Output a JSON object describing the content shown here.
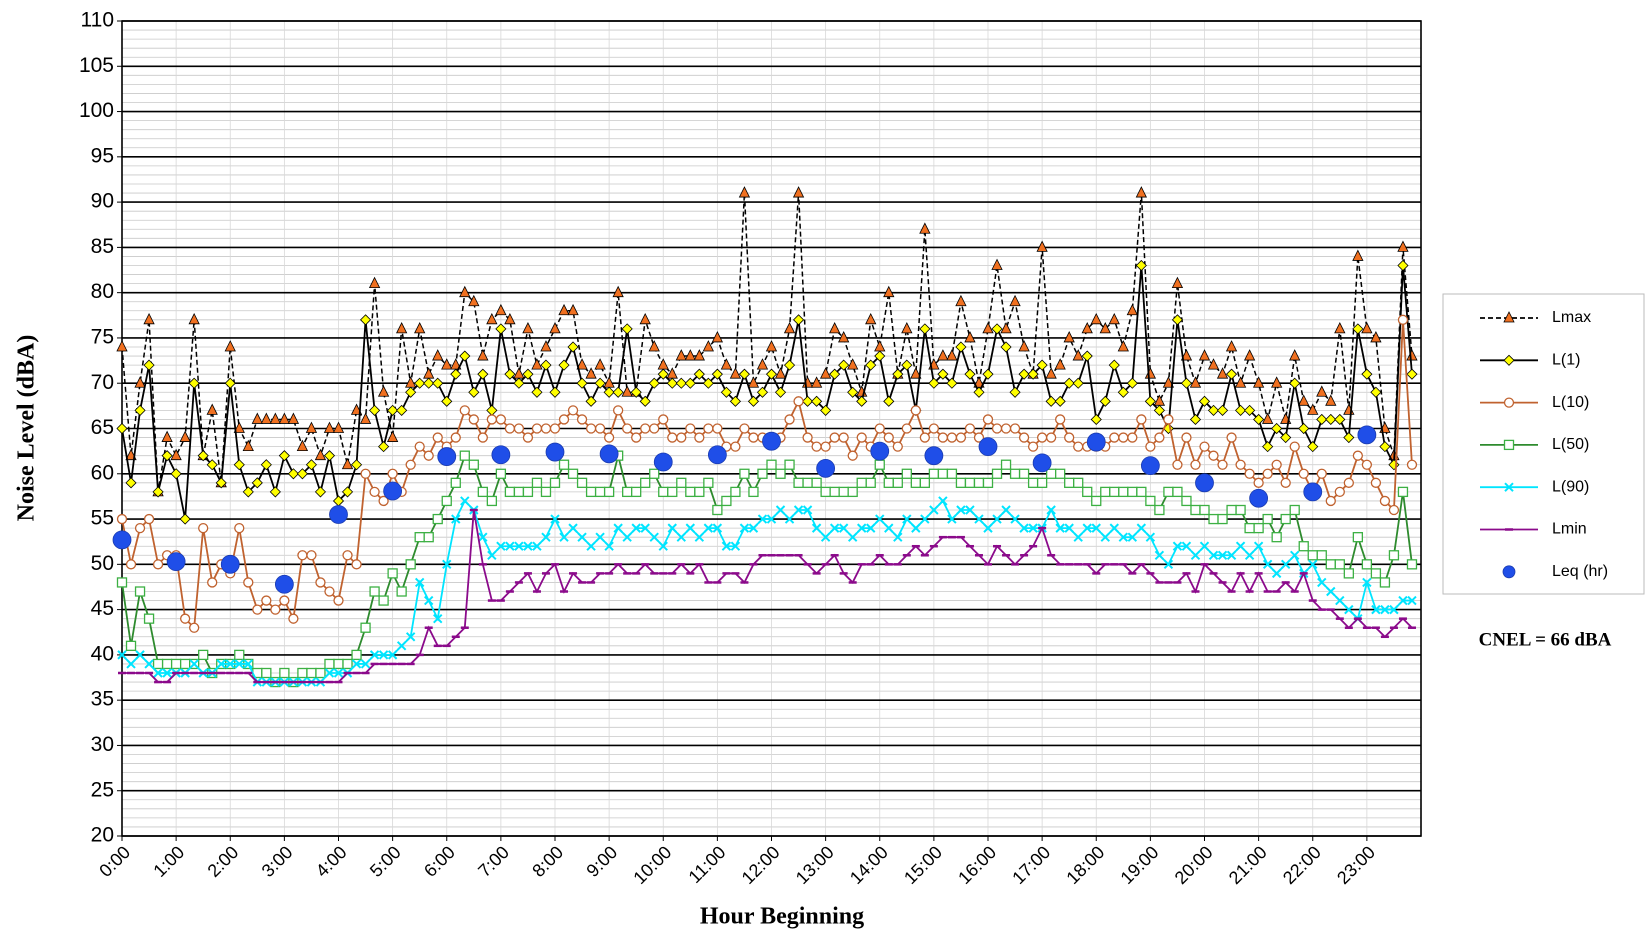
{
  "chart_data": {
    "type": "line",
    "y_label": "Noise Level (dBA)",
    "x_label": "Hour Beginning",
    "annotation": "CNEL = 66 dBA",
    "xlim": [
      0,
      1440
    ],
    "ylim": [
      20,
      110
    ],
    "yticks": [
      20,
      25,
      30,
      35,
      40,
      45,
      50,
      55,
      60,
      65,
      70,
      75,
      80,
      85,
      90,
      95,
      100,
      105,
      110
    ],
    "xticks": [
      {
        "value": 0,
        "label": "0:00"
      },
      {
        "value": 60,
        "label": "1:00"
      },
      {
        "value": 120,
        "label": "2:00"
      },
      {
        "value": 180,
        "label": "3:00"
      },
      {
        "value": 240,
        "label": "4:00"
      },
      {
        "value": 300,
        "label": "5:00"
      },
      {
        "value": 360,
        "label": "6:00"
      },
      {
        "value": 420,
        "label": "7:00"
      },
      {
        "value": 480,
        "label": "8:00"
      },
      {
        "value": 540,
        "label": "9:00"
      },
      {
        "value": 600,
        "label": "10:00"
      },
      {
        "value": 660,
        "label": "11:00"
      },
      {
        "value": 720,
        "label": "12:00"
      },
      {
        "value": 780,
        "label": "13:00"
      },
      {
        "value": 840,
        "label": "14:00"
      },
      {
        "value": 900,
        "label": "15:00"
      },
      {
        "value": 960,
        "label": "16:00"
      },
      {
        "value": 1020,
        "label": "17:00"
      },
      {
        "value": 1080,
        "label": "18:00"
      },
      {
        "value": 1140,
        "label": "19:00"
      },
      {
        "value": 1200,
        "label": "20:00"
      },
      {
        "value": 1260,
        "label": "21:00"
      },
      {
        "value": 1320,
        "label": "22:00"
      },
      {
        "value": 1380,
        "label": "23:00"
      }
    ],
    "grid": true,
    "legend": "right",
    "x": [
      0,
      10,
      20,
      30,
      40,
      50,
      60,
      70,
      80,
      90,
      100,
      110,
      120,
      130,
      140,
      150,
      160,
      170,
      180,
      190,
      200,
      210,
      220,
      230,
      240,
      250,
      260,
      270,
      280,
      290,
      300,
      310,
      320,
      330,
      340,
      350,
      360,
      370,
      380,
      390,
      400,
      410,
      420,
      430,
      440,
      450,
      460,
      470,
      480,
      490,
      500,
      510,
      520,
      530,
      540,
      550,
      560,
      570,
      580,
      590,
      600,
      610,
      620,
      630,
      640,
      650,
      660,
      670,
      680,
      690,
      700,
      710,
      720,
      730,
      740,
      750,
      760,
      770,
      780,
      790,
      800,
      810,
      820,
      830,
      840,
      850,
      860,
      870,
      880,
      890,
      900,
      910,
      920,
      930,
      940,
      950,
      960,
      970,
      980,
      990,
      1000,
      1010,
      1020,
      1030,
      1040,
      1050,
      1060,
      1070,
      1080,
      1090,
      1100,
      1110,
      1120,
      1130,
      1140,
      1150,
      1160,
      1170,
      1180,
      1190,
      1200,
      1210,
      1220,
      1230,
      1240,
      1250,
      1260,
      1270,
      1280,
      1290,
      1300,
      1310,
      1320,
      1330,
      1340,
      1350,
      1360,
      1370,
      1380,
      1390,
      1400,
      1410,
      1420,
      1430
    ],
    "series": [
      {
        "name": "Lmax",
        "line_color": "#000000",
        "marker_color": "#f07020",
        "marker": "triangle",
        "dashed": true,
        "line": true,
        "values": [
          74,
          62,
          70,
          77,
          58,
          64,
          62,
          64,
          77,
          62,
          67,
          59,
          74,
          65,
          63,
          66,
          66,
          66,
          66,
          66,
          63,
          65,
          62,
          65,
          65,
          61,
          67,
          66,
          81,
          69,
          64,
          76,
          70,
          76,
          71,
          73,
          72,
          72,
          80,
          79,
          73,
          77,
          78,
          77,
          71,
          76,
          72,
          74,
          76,
          78,
          78,
          72,
          71,
          72,
          70,
          80,
          69,
          69,
          77,
          74,
          72,
          71,
          73,
          73,
          73,
          74,
          75,
          72,
          71,
          91,
          70,
          72,
          74,
          71,
          76,
          91,
          70,
          70,
          71,
          76,
          75,
          72,
          69,
          77,
          74,
          80,
          71,
          76,
          71,
          87,
          72,
          73,
          73,
          79,
          75,
          70,
          76,
          83,
          76,
          79,
          74,
          71,
          85,
          71,
          72,
          75,
          73,
          76,
          77,
          76,
          77,
          74,
          78,
          91,
          71,
          68,
          70,
          81,
          73,
          70,
          73,
          72,
          71,
          74,
          70,
          73,
          70,
          66,
          70,
          66,
          73,
          68,
          67,
          69,
          68,
          76,
          67,
          84,
          76,
          75,
          65,
          62,
          85,
          73
        ]
      },
      {
        "name": "L(1)",
        "line_color": "#000000",
        "marker_color": "#ffff00",
        "marker": "diamond",
        "dashed": false,
        "line": true,
        "values": [
          65,
          59,
          67,
          72,
          58,
          62,
          60,
          55,
          70,
          62,
          61,
          59,
          70,
          61,
          58,
          59,
          61,
          58,
          62,
          60,
          60,
          61,
          58,
          62,
          57,
          58,
          61,
          77,
          67,
          63,
          67,
          67,
          69,
          70,
          70,
          70,
          68,
          71,
          73,
          69,
          71,
          67,
          76,
          71,
          70,
          71,
          69,
          72,
          69,
          72,
          74,
          70,
          68,
          70,
          69,
          69,
          76,
          69,
          68,
          70,
          71,
          70,
          70,
          70,
          71,
          70,
          71,
          69,
          68,
          71,
          68,
          69,
          71,
          69,
          72,
          77,
          68,
          68,
          67,
          71,
          72,
          69,
          68,
          72,
          73,
          68,
          71,
          72,
          67,
          76,
          70,
          71,
          70,
          74,
          71,
          69,
          71,
          76,
          74,
          69,
          71,
          71,
          72,
          68,
          68,
          70,
          70,
          73,
          66,
          68,
          72,
          69,
          70,
          83,
          68,
          67,
          65,
          77,
          70,
          66,
          68,
          67,
          67,
          71,
          67,
          67,
          66,
          63,
          65,
          64,
          70,
          65,
          63,
          66,
          66,
          66,
          64,
          76,
          71,
          69,
          63,
          61,
          83,
          71
        ]
      },
      {
        "name": "L(10)",
        "line_color": "#c0622f",
        "marker_color": "#c0622f",
        "marker": "circle",
        "dashed": false,
        "line": true,
        "values": [
          55,
          50,
          54,
          55,
          50,
          51,
          51,
          44,
          43,
          54,
          48,
          50,
          49,
          54,
          48,
          45,
          46,
          45,
          46,
          44,
          51,
          51,
          48,
          47,
          46,
          51,
          50,
          60,
          58,
          57,
          60,
          58,
          61,
          63,
          62,
          64,
          63,
          64,
          67,
          66,
          64,
          66,
          66,
          65,
          65,
          64,
          65,
          65,
          65,
          66,
          67,
          66,
          65,
          65,
          64,
          67,
          65,
          64,
          65,
          65,
          66,
          64,
          64,
          65,
          64,
          65,
          65,
          63,
          63,
          65,
          64,
          64,
          64,
          64,
          66,
          68,
          64,
          63,
          63,
          64,
          64,
          62,
          64,
          63,
          65,
          64,
          63,
          65,
          67,
          64,
          65,
          64,
          64,
          64,
          65,
          64,
          66,
          65,
          65,
          65,
          64,
          63,
          64,
          64,
          66,
          64,
          63,
          63,
          63,
          63,
          64,
          64,
          64,
          66,
          63,
          64,
          66,
          61,
          64,
          61,
          63,
          62,
          61,
          64,
          61,
          60,
          59,
          60,
          61,
          59,
          63,
          60,
          58,
          60,
          57,
          58,
          59,
          62,
          61,
          59,
          57,
          56,
          77,
          61
        ]
      },
      {
        "name": "L(50)",
        "line_color": "#2e8b2e",
        "marker_color": "#3cb043",
        "marker": "square",
        "dashed": false,
        "line": true,
        "values": [
          48,
          41,
          47,
          44,
          39,
          39,
          39,
          39,
          39,
          40,
          38,
          39,
          39,
          40,
          39,
          38,
          38,
          37,
          38,
          37,
          38,
          38,
          38,
          39,
          39,
          39,
          40,
          43,
          47,
          46,
          49,
          47,
          50,
          53,
          53,
          55,
          57,
          59,
          62,
          61,
          58,
          57,
          60,
          58,
          58,
          58,
          59,
          58,
          59,
          61,
          60,
          59,
          58,
          58,
          58,
          62,
          58,
          58,
          59,
          60,
          58,
          58,
          59,
          58,
          58,
          59,
          56,
          57,
          58,
          60,
          58,
          60,
          61,
          60,
          61,
          59,
          59,
          59,
          58,
          58,
          58,
          58,
          59,
          59,
          61,
          59,
          59,
          60,
          59,
          59,
          60,
          60,
          60,
          59,
          59,
          59,
          59,
          60,
          61,
          60,
          60,
          59,
          59,
          60,
          60,
          59,
          59,
          58,
          57,
          58,
          58,
          58,
          58,
          58,
          57,
          56,
          58,
          58,
          57,
          56,
          56,
          55,
          55,
          56,
          56,
          54,
          54,
          55,
          53,
          55,
          56,
          52,
          51,
          51,
          50,
          50,
          49,
          53,
          50,
          49,
          48,
          51,
          58,
          50
        ]
      },
      {
        "name": "L(90)",
        "line_color": "#00e5ff",
        "marker_color": "#00e5ff",
        "marker": "x",
        "dashed": false,
        "line": true,
        "values": [
          40,
          39,
          40,
          39,
          38,
          38,
          38,
          38,
          39,
          38,
          38,
          39,
          39,
          39,
          39,
          37,
          37,
          37,
          37,
          37,
          37,
          37,
          37,
          38,
          38,
          38,
          39,
          39,
          40,
          40,
          40,
          41,
          42,
          48,
          46,
          44,
          50,
          55,
          57,
          56,
          53,
          51,
          52,
          52,
          52,
          52,
          52,
          53,
          55,
          53,
          54,
          53,
          52,
          53,
          52,
          54,
          53,
          54,
          54,
          53,
          52,
          54,
          53,
          54,
          53,
          54,
          54,
          52,
          52,
          54,
          54,
          55,
          55,
          56,
          55,
          56,
          56,
          54,
          53,
          54,
          54,
          53,
          54,
          54,
          55,
          54,
          53,
          55,
          54,
          55,
          56,
          57,
          55,
          56,
          56,
          55,
          54,
          55,
          56,
          55,
          54,
          54,
          54,
          56,
          54,
          54,
          53,
          54,
          54,
          53,
          54,
          53,
          53,
          54,
          53,
          51,
          50,
          52,
          52,
          51,
          52,
          51,
          51,
          51,
          52,
          51,
          52,
          50,
          49,
          50,
          51,
          49,
          50,
          48,
          47,
          46,
          45,
          44,
          48,
          45,
          45,
          45,
          46,
          46
        ]
      },
      {
        "name": "Lmin",
        "line_color": "#8b0a8b",
        "marker_color": "#8b0a8b",
        "marker": "dash",
        "dashed": false,
        "line": true,
        "values": [
          38,
          38,
          38,
          38,
          37,
          37,
          38,
          38,
          38,
          38,
          38,
          38,
          38,
          38,
          38,
          37,
          37,
          37,
          37,
          37,
          37,
          37,
          37,
          37,
          37,
          38,
          38,
          38,
          39,
          39,
          39,
          39,
          39,
          40,
          43,
          41,
          41,
          42,
          43,
          56,
          50,
          46,
          46,
          47,
          48,
          49,
          47,
          49,
          50,
          47,
          49,
          48,
          48,
          49,
          49,
          50,
          49,
          49,
          50,
          49,
          49,
          49,
          50,
          49,
          50,
          48,
          48,
          49,
          49,
          48,
          50,
          51,
          51,
          51,
          51,
          51,
          50,
          49,
          50,
          51,
          49,
          48,
          50,
          50,
          51,
          50,
          50,
          51,
          52,
          51,
          52,
          53,
          53,
          53,
          52,
          51,
          50,
          52,
          51,
          50,
          51,
          52,
          54,
          51,
          50,
          50,
          50,
          50,
          49,
          50,
          50,
          50,
          49,
          50,
          49,
          48,
          48,
          48,
          49,
          47,
          50,
          49,
          48,
          47,
          49,
          47,
          49,
          47,
          47,
          48,
          47,
          49,
          46,
          45,
          45,
          44,
          43,
          44,
          43,
          43,
          42,
          43,
          44,
          43
        ]
      },
      {
        "name": "Leq (hr)",
        "line_color": "#1f4ee8",
        "marker_color": "#1f4ee8",
        "marker": "dot",
        "dashed": false,
        "line": false,
        "x": [
          0,
          60,
          120,
          180,
          240,
          300,
          360,
          420,
          480,
          540,
          600,
          660,
          720,
          780,
          840,
          900,
          960,
          1020,
          1080,
          1140,
          1200,
          1260,
          1320,
          1380
        ],
        "values": [
          52.7,
          50.3,
          50.0,
          47.8,
          55.5,
          58.1,
          61.9,
          62.1,
          62.4,
          62.2,
          61.3,
          62.1,
          63.6,
          60.6,
          62.5,
          62.0,
          63.0,
          61.2,
          63.5,
          60.9,
          59.0,
          57.3,
          58.0,
          64.3
        ]
      }
    ]
  }
}
